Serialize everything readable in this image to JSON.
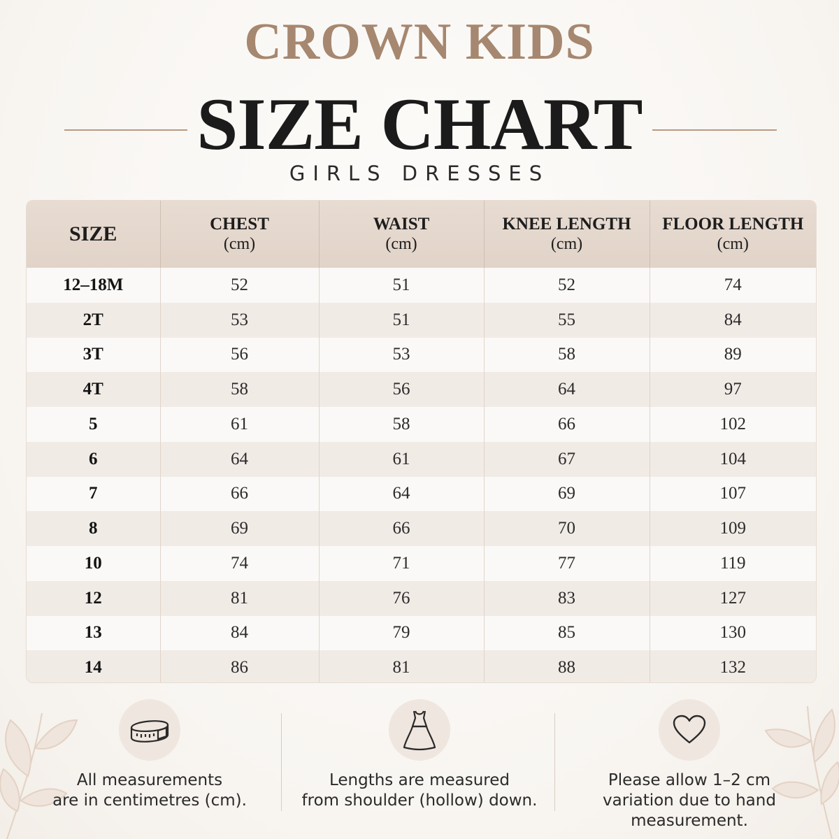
{
  "brand": "CROWN KIDS",
  "title": "SIZE CHART",
  "subtitle": "GIRLS DRESSES",
  "table": {
    "headers": [
      {
        "label": "SIZE",
        "unit": ""
      },
      {
        "label": "CHEST",
        "unit": "(cm)"
      },
      {
        "label": "WAIST",
        "unit": "(cm)"
      },
      {
        "label": "KNEE LENGTH",
        "unit": "(cm)"
      },
      {
        "label": "FLOOR LENGTH",
        "unit": "(cm)"
      }
    ],
    "rows": [
      [
        "12–18M",
        "52",
        "51",
        "52",
        "74"
      ],
      [
        "2T",
        "53",
        "51",
        "55",
        "84"
      ],
      [
        "3T",
        "56",
        "53",
        "58",
        "89"
      ],
      [
        "4T",
        "58",
        "56",
        "64",
        "97"
      ],
      [
        "5",
        "61",
        "58",
        "66",
        "102"
      ],
      [
        "6",
        "64",
        "61",
        "67",
        "104"
      ],
      [
        "7",
        "66",
        "64",
        "69",
        "107"
      ],
      [
        "8",
        "69",
        "66",
        "70",
        "109"
      ],
      [
        "10",
        "74",
        "71",
        "77",
        "119"
      ],
      [
        "12",
        "81",
        "76",
        "83",
        "127"
      ],
      [
        "13",
        "84",
        "79",
        "85",
        "130"
      ],
      [
        "14",
        "86",
        "81",
        "88",
        "132"
      ]
    ]
  },
  "notes": [
    {
      "icon": "measuring-tape-icon",
      "line1": "All measurements",
      "line2": "are in centimetres (cm)."
    },
    {
      "icon": "dress-icon",
      "line1": "Lengths are measured",
      "line2": "from shoulder (hollow) down."
    },
    {
      "icon": "heart-icon",
      "line1": "Please allow 1–2 cm",
      "line2": "variation due to hand measurement."
    }
  ],
  "colors": {
    "brand": "#a6876f",
    "header_bg": "#e4d7cc",
    "stripe": "#f1ebe6",
    "accent_line": "#b89a83"
  }
}
